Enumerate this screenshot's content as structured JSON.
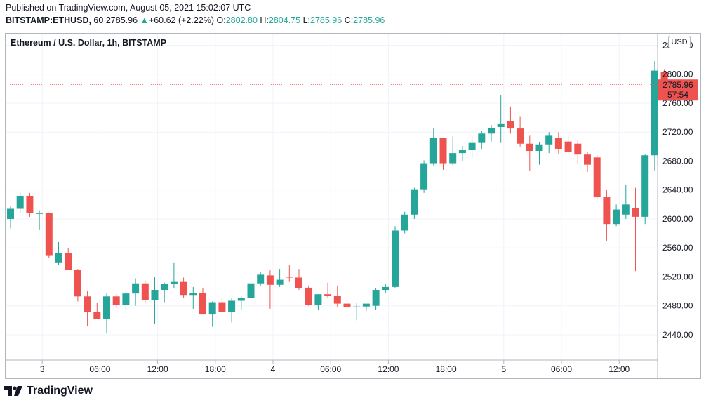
{
  "header": {
    "published": "Published on TradingView.com, August 05, 2021 15:02:07 UTC",
    "symbol": "BITSTAMP:ETHUSD, 60",
    "last": "2785.96",
    "arrow": "▲",
    "change": "+60.62 (+2.22%)",
    "o_label": "O:",
    "o_value": "2802.80",
    "h_label": "H:",
    "h_value": "2804.75",
    "l_label": "L:",
    "l_value": "2785.96",
    "c_label": "C:",
    "c_value": "2785.96"
  },
  "chart_title": "Ethereum / U.S. Dollar, 1h, BITSTAMP",
  "currency_badge": "USD",
  "price_label": {
    "price": "2785.96",
    "countdown": "57:54"
  },
  "footer": {
    "brand": "TradingView"
  },
  "colors": {
    "up": "#26a69a",
    "down": "#ef5350",
    "grid": "#f0f3fa",
    "axis_text": "#131722"
  },
  "chart_data": {
    "type": "candlestick",
    "title": "Ethereum / U.S. Dollar, 1h, BITSTAMP",
    "y_ticks": [
      2440,
      2480,
      2520,
      2560,
      2600,
      2640,
      2680,
      2720,
      2760,
      2800,
      2840
    ],
    "y_tick_labels": [
      "2440.00",
      "2480.00",
      "2520.00",
      "2560.00",
      "2600.00",
      "2640.00",
      "2680.00",
      "2720.00",
      "2760.00",
      "2800.00",
      "2840.00"
    ],
    "ylim": [
      2406,
      2856
    ],
    "x_ticks": [
      {
        "index": 3.3,
        "label": "3"
      },
      {
        "index": 9.3,
        "label": "06:00"
      },
      {
        "index": 15.3,
        "label": "12:00"
      },
      {
        "index": 21.3,
        "label": "18:00"
      },
      {
        "index": 27.3,
        "label": "4"
      },
      {
        "index": 33.3,
        "label": "06:00"
      },
      {
        "index": 39.3,
        "label": "12:00"
      },
      {
        "index": 45.3,
        "label": "18:00"
      },
      {
        "index": 51.3,
        "label": "5"
      },
      {
        "index": 57.3,
        "label": "06:00"
      },
      {
        "index": 63.3,
        "label": "12:00"
      }
    ],
    "last_price": 2785.96,
    "candles": [
      {
        "o": 2600,
        "h": 2617,
        "l": 2587,
        "c": 2614
      },
      {
        "o": 2614,
        "h": 2636,
        "l": 2608,
        "c": 2632
      },
      {
        "o": 2632,
        "h": 2636,
        "l": 2603,
        "c": 2608
      },
      {
        "o": 2607,
        "h": 2612,
        "l": 2585,
        "c": 2608
      },
      {
        "o": 2608,
        "h": 2609,
        "l": 2546,
        "c": 2549
      },
      {
        "o": 2540,
        "h": 2568,
        "l": 2536,
        "c": 2553
      },
      {
        "o": 2553,
        "h": 2560,
        "l": 2530,
        "c": 2530
      },
      {
        "o": 2530,
        "h": 2531,
        "l": 2486,
        "c": 2493
      },
      {
        "o": 2493,
        "h": 2500,
        "l": 2452,
        "c": 2471
      },
      {
        "o": 2471,
        "h": 2484,
        "l": 2466,
        "c": 2462
      },
      {
        "o": 2462,
        "h": 2498,
        "l": 2442,
        "c": 2493
      },
      {
        "o": 2493,
        "h": 2496,
        "l": 2477,
        "c": 2481
      },
      {
        "o": 2481,
        "h": 2500,
        "l": 2474,
        "c": 2497
      },
      {
        "o": 2497,
        "h": 2518,
        "l": 2480,
        "c": 2511
      },
      {
        "o": 2511,
        "h": 2515,
        "l": 2484,
        "c": 2488
      },
      {
        "o": 2488,
        "h": 2520,
        "l": 2455,
        "c": 2502
      },
      {
        "o": 2502,
        "h": 2512,
        "l": 2485,
        "c": 2510
      },
      {
        "o": 2510,
        "h": 2540,
        "l": 2504,
        "c": 2513
      },
      {
        "o": 2513,
        "h": 2519,
        "l": 2491,
        "c": 2495
      },
      {
        "o": 2495,
        "h": 2506,
        "l": 2476,
        "c": 2498
      },
      {
        "o": 2498,
        "h": 2505,
        "l": 2470,
        "c": 2468
      },
      {
        "o": 2468,
        "h": 2486,
        "l": 2451,
        "c": 2485
      },
      {
        "o": 2485,
        "h": 2492,
        "l": 2470,
        "c": 2471
      },
      {
        "o": 2471,
        "h": 2491,
        "l": 2457,
        "c": 2487
      },
      {
        "o": 2487,
        "h": 2493,
        "l": 2475,
        "c": 2491
      },
      {
        "o": 2491,
        "h": 2518,
        "l": 2488,
        "c": 2511
      },
      {
        "o": 2511,
        "h": 2527,
        "l": 2508,
        "c": 2523
      },
      {
        "o": 2522,
        "h": 2529,
        "l": 2476,
        "c": 2509
      },
      {
        "o": 2509,
        "h": 2531,
        "l": 2506,
        "c": 2516
      },
      {
        "o": 2520,
        "h": 2536,
        "l": 2513,
        "c": 2519
      },
      {
        "o": 2519,
        "h": 2531,
        "l": 2502,
        "c": 2504
      },
      {
        "o": 2505,
        "h": 2508,
        "l": 2480,
        "c": 2481
      },
      {
        "o": 2481,
        "h": 2496,
        "l": 2474,
        "c": 2496
      },
      {
        "o": 2496,
        "h": 2512,
        "l": 2491,
        "c": 2494
      },
      {
        "o": 2494,
        "h": 2508,
        "l": 2478,
        "c": 2483
      },
      {
        "o": 2483,
        "h": 2492,
        "l": 2474,
        "c": 2478
      },
      {
        "o": 2478,
        "h": 2484,
        "l": 2460,
        "c": 2479
      },
      {
        "o": 2479,
        "h": 2482,
        "l": 2473,
        "c": 2483
      },
      {
        "o": 2480,
        "h": 2505,
        "l": 2474,
        "c": 2502
      },
      {
        "o": 2502,
        "h": 2510,
        "l": 2498,
        "c": 2506
      },
      {
        "o": 2506,
        "h": 2590,
        "l": 2505,
        "c": 2584
      },
      {
        "o": 2584,
        "h": 2610,
        "l": 2580,
        "c": 2606
      },
      {
        "o": 2606,
        "h": 2643,
        "l": 2600,
        "c": 2641
      },
      {
        "o": 2641,
        "h": 2681,
        "l": 2636,
        "c": 2677
      },
      {
        "o": 2677,
        "h": 2726,
        "l": 2674,
        "c": 2712
      },
      {
        "o": 2712,
        "h": 2712,
        "l": 2668,
        "c": 2677
      },
      {
        "o": 2677,
        "h": 2714,
        "l": 2674,
        "c": 2691
      },
      {
        "o": 2691,
        "h": 2701,
        "l": 2680,
        "c": 2695
      },
      {
        "o": 2695,
        "h": 2714,
        "l": 2684,
        "c": 2705
      },
      {
        "o": 2705,
        "h": 2722,
        "l": 2697,
        "c": 2718
      },
      {
        "o": 2718,
        "h": 2730,
        "l": 2707,
        "c": 2726
      },
      {
        "o": 2727,
        "h": 2771,
        "l": 2705,
        "c": 2732
      },
      {
        "o": 2735,
        "h": 2755,
        "l": 2718,
        "c": 2725
      },
      {
        "o": 2725,
        "h": 2742,
        "l": 2700,
        "c": 2704
      },
      {
        "o": 2704,
        "h": 2715,
        "l": 2666,
        "c": 2694
      },
      {
        "o": 2694,
        "h": 2706,
        "l": 2675,
        "c": 2703
      },
      {
        "o": 2703,
        "h": 2720,
        "l": 2691,
        "c": 2715
      },
      {
        "o": 2712,
        "h": 2720,
        "l": 2690,
        "c": 2697
      },
      {
        "o": 2707,
        "h": 2716,
        "l": 2690,
        "c": 2693
      },
      {
        "o": 2704,
        "h": 2709,
        "l": 2676,
        "c": 2689
      },
      {
        "o": 2689,
        "h": 2693,
        "l": 2665,
        "c": 2675
      },
      {
        "o": 2685,
        "h": 2688,
        "l": 2627,
        "c": 2630
      },
      {
        "o": 2630,
        "h": 2640,
        "l": 2570,
        "c": 2593
      },
      {
        "o": 2593,
        "h": 2620,
        "l": 2590,
        "c": 2613
      },
      {
        "o": 2606,
        "h": 2647,
        "l": 2600,
        "c": 2620
      },
      {
        "o": 2615,
        "h": 2643,
        "l": 2528,
        "c": 2603
      },
      {
        "o": 2603,
        "h": 2689,
        "l": 2593,
        "c": 2688
      },
      {
        "o": 2688,
        "h": 2818,
        "l": 2667,
        "c": 2805
      },
      {
        "o": 2803,
        "h": 2806,
        "l": 2786,
        "c": 2786
      }
    ]
  }
}
